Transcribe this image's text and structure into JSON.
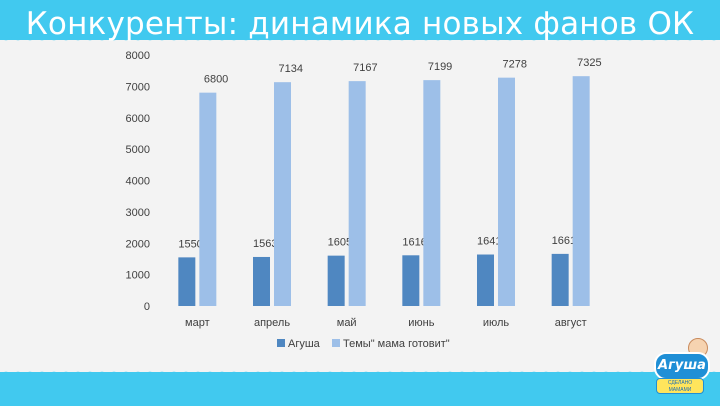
{
  "header": {
    "title": "Конкуренты: динамика новых фанов ОК"
  },
  "logo": {
    "name": "Агуша",
    "tagline": "СДЕЛАНО МАМАМИ"
  },
  "colors": {
    "band": "#41c9ef",
    "series_1": "#4f87c1",
    "series_2": "#9dbfe8"
  },
  "chart_data": {
    "type": "bar",
    "title": "",
    "categories": [
      "март",
      "апрель",
      "май",
      "июнь",
      "июль",
      "август"
    ],
    "series": [
      {
        "name": "Агуша",
        "values": [
          1550,
          1563,
          1605,
          1616,
          1641,
          1661
        ]
      },
      {
        "name": "Темы\" мама готовит\"",
        "values": [
          6800,
          7134,
          7167,
          7199,
          7278,
          7325
        ]
      }
    ],
    "ylim": [
      0,
      8000
    ],
    "yticks": [
      0,
      1000,
      2000,
      3000,
      4000,
      5000,
      6000,
      7000,
      8000
    ],
    "grid": false,
    "legend": "bottom"
  }
}
